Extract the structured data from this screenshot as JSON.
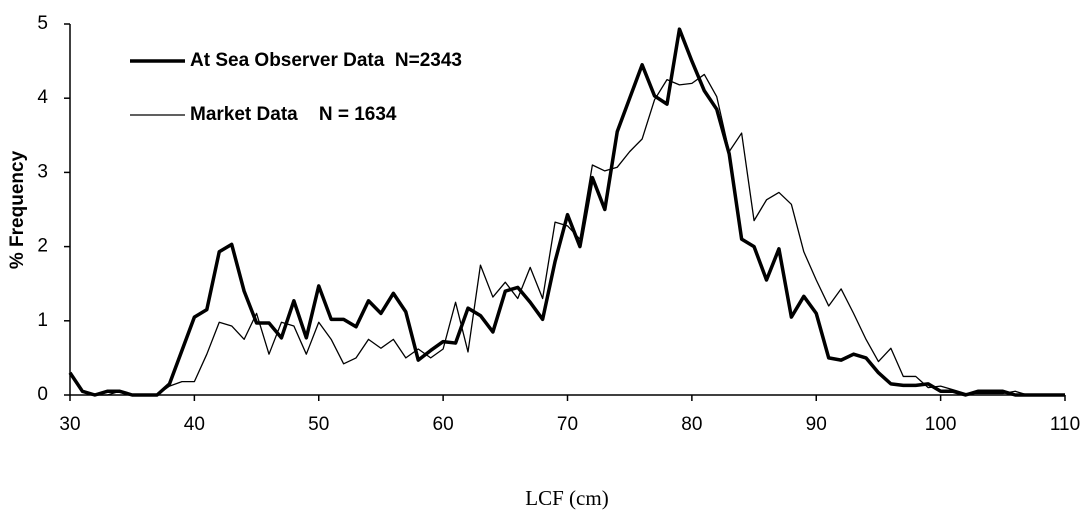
{
  "chart_data": {
    "type": "line",
    "x_label": "LCF (cm)",
    "y_label": "% Frequency",
    "x": [
      30,
      31,
      32,
      33,
      34,
      35,
      36,
      37,
      38,
      39,
      40,
      41,
      42,
      43,
      44,
      45,
      46,
      47,
      48,
      49,
      50,
      51,
      52,
      53,
      54,
      55,
      56,
      57,
      58,
      59,
      60,
      61,
      62,
      63,
      64,
      65,
      66,
      67,
      68,
      69,
      70,
      71,
      72,
      73,
      74,
      75,
      76,
      77,
      78,
      79,
      80,
      81,
      82,
      83,
      84,
      85,
      86,
      87,
      88,
      89,
      90,
      91,
      92,
      93,
      94,
      95,
      96,
      97,
      98,
      99,
      100,
      101,
      102,
      103,
      104,
      105,
      106,
      107,
      108,
      109,
      110
    ],
    "series": [
      {
        "name": "At Sea Observer Data  N=2343",
        "color": "#000000",
        "width": 3.5,
        "values": [
          0.3,
          0.05,
          0,
          0.05,
          0.05,
          0,
          0,
          0,
          0.15,
          0.6,
          1.05,
          1.15,
          1.93,
          2.03,
          1.4,
          0.97,
          0.97,
          0.77,
          1.27,
          0.77,
          1.47,
          1.02,
          1.02,
          0.92,
          1.27,
          1.1,
          1.37,
          1.12,
          0.47,
          0.6,
          0.72,
          0.7,
          1.17,
          1.07,
          0.85,
          1.4,
          1.45,
          1.25,
          1.02,
          1.8,
          2.43,
          2,
          2.93,
          2.5,
          3.55,
          4,
          4.45,
          4.03,
          3.92,
          4.93,
          4.5,
          4.1,
          3.85,
          3.25,
          2.1,
          2,
          1.55,
          1.97,
          1.05,
          1.33,
          1.1,
          0.5,
          0.47,
          0.55,
          0.5,
          0.3,
          0.15,
          0.13,
          0.13,
          0.15,
          0.05,
          0.05,
          0,
          0.05,
          0.05,
          0.05,
          0,
          0,
          0,
          0,
          0
        ]
      },
      {
        "name": "Market Data    N = 1634",
        "color": "#000000",
        "width": 1.3,
        "values": [
          0.28,
          0.05,
          0,
          0,
          0.05,
          0,
          0,
          0,
          0.12,
          0.18,
          0.18,
          0.55,
          0.98,
          0.93,
          0.75,
          1.1,
          0.55,
          0.98,
          0.93,
          0.55,
          0.98,
          0.75,
          0.42,
          0.5,
          0.75,
          0.63,
          0.75,
          0.5,
          0.62,
          0.5,
          0.62,
          1.25,
          0.58,
          1.75,
          1.32,
          1.52,
          1.3,
          1.72,
          1.3,
          2.33,
          2.28,
          2.1,
          3.1,
          3.02,
          3.07,
          3.28,
          3.45,
          3.98,
          4.25,
          4.18,
          4.2,
          4.32,
          4.02,
          3.28,
          3.53,
          2.35,
          2.63,
          2.73,
          2.57,
          1.93,
          1.55,
          1.2,
          1.43,
          1.1,
          0.75,
          0.45,
          0.63,
          0.25,
          0.25,
          0.1,
          0.12,
          0.07,
          0.02,
          0.02,
          0.02,
          0.02,
          0.05,
          0,
          0,
          0,
          0
        ]
      }
    ],
    "xlim": [
      30,
      110
    ],
    "xticks": [
      30,
      40,
      50,
      60,
      70,
      80,
      90,
      100,
      110
    ],
    "ylim": [
      0,
      5
    ],
    "yticks": [
      0,
      1,
      2,
      3,
      4,
      5
    ],
    "grid": false
  }
}
